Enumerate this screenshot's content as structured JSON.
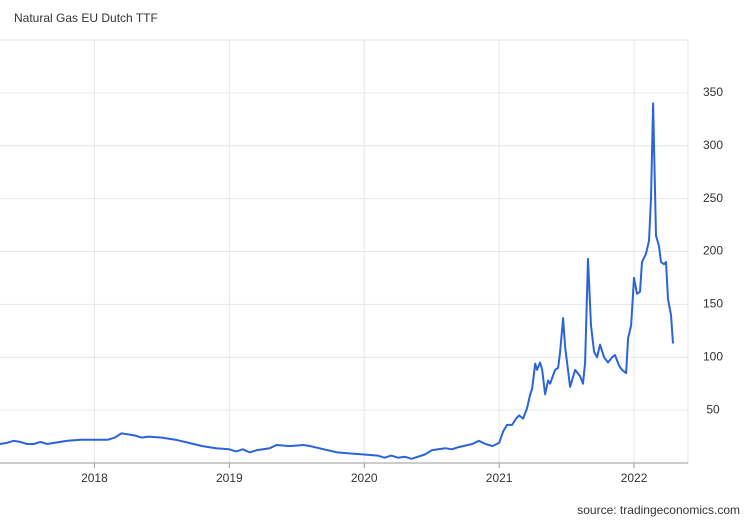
{
  "chart_data": {
    "type": "line",
    "title": "Natural Gas EU Dutch TTF",
    "source": "source: tradingeconomics.com",
    "xlim": [
      2017.3,
      2022.4
    ],
    "xticks": [
      2018,
      2019,
      2020,
      2021,
      2022
    ],
    "ylim": [
      0,
      400
    ],
    "yticks": [
      50,
      100,
      150,
      200,
      250,
      300,
      350
    ],
    "grid": true,
    "series": [
      {
        "name": "Natural Gas EU Dutch TTF",
        "color": "#2b63d9",
        "x": [
          2017.3,
          2017.35,
          2017.4,
          2017.45,
          2017.5,
          2017.55,
          2017.6,
          2017.65,
          2017.7,
          2017.8,
          2017.9,
          2018.0,
          2018.1,
          2018.15,
          2018.2,
          2018.25,
          2018.3,
          2018.35,
          2018.4,
          2018.5,
          2018.6,
          2018.7,
          2018.8,
          2018.9,
          2019.0,
          2019.05,
          2019.1,
          2019.15,
          2019.2,
          2019.3,
          2019.35,
          2019.45,
          2019.55,
          2019.6,
          2019.7,
          2019.8,
          2019.9,
          2020.0,
          2020.1,
          2020.15,
          2020.2,
          2020.25,
          2020.3,
          2020.35,
          2020.45,
          2020.5,
          2020.6,
          2020.65,
          2020.7,
          2020.8,
          2020.85,
          2020.9,
          2020.95,
          2021.0,
          2021.03,
          2021.059,
          2021.096,
          2021.126,
          2021.148,
          2021.178,
          2021.207,
          2021.23,
          2021.244,
          2021.267,
          2021.281,
          2021.304,
          2021.319,
          2021.341,
          2021.363,
          2021.378,
          2021.415,
          2021.437,
          2021.452,
          2021.474,
          2021.489,
          2021.526,
          2021.563,
          2021.6,
          2021.622,
          2021.637,
          2021.659,
          2021.681,
          2021.704,
          2021.726,
          2021.748,
          2021.778,
          2021.807,
          2021.837,
          2021.859,
          2021.889,
          2021.911,
          2021.941,
          2021.956,
          2021.978,
          2022.0,
          2022.022,
          2022.044,
          2022.059,
          2022.089,
          2022.111,
          2022.126,
          2022.141,
          2022.163,
          2022.185,
          2022.2,
          2022.222,
          2022.237,
          2022.252,
          2022.274,
          2022.289
        ],
        "values": [
          18,
          19,
          21,
          20,
          18,
          18,
          20,
          18,
          19,
          21,
          22,
          22,
          22,
          24,
          28,
          27,
          26,
          24,
          25,
          24,
          22,
          19,
          16,
          14,
          13,
          11,
          13,
          10,
          12,
          14,
          17,
          16,
          17,
          16,
          13,
          10,
          9,
          8,
          7,
          5,
          7,
          5,
          6,
          4,
          8,
          12,
          14,
          13,
          15,
          18,
          21,
          18,
          16,
          19,
          30,
          36,
          36,
          42,
          45,
          42,
          52,
          65,
          70,
          94,
          88,
          95,
          88,
          65,
          78,
          75,
          88,
          90,
          105,
          137,
          110,
          72,
          88,
          82,
          75,
          95,
          193,
          130,
          105,
          100,
          112,
          100,
          95,
          100,
          102,
          92,
          88,
          85,
          118,
          130,
          175,
          160,
          162,
          190,
          198,
          210,
          250,
          340,
          215,
          205,
          190,
          188,
          190,
          155,
          140,
          113
        ]
      }
    ]
  }
}
